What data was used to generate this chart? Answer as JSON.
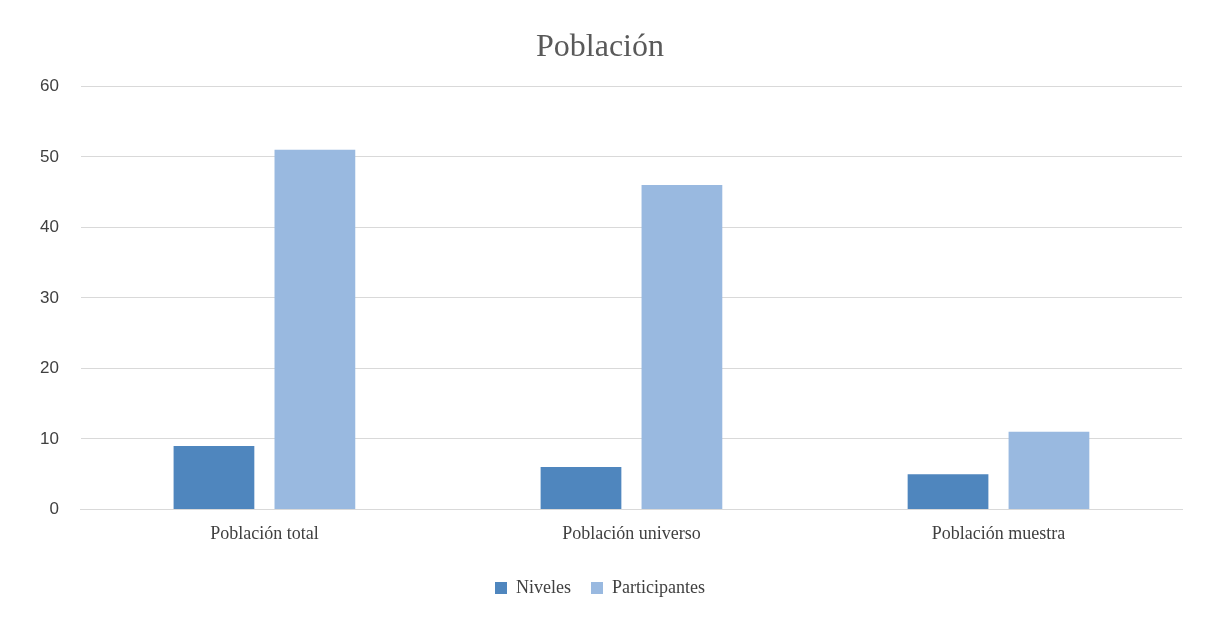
{
  "chart_data": {
    "type": "bar",
    "title": "Población",
    "categories": [
      "Población total",
      "Población universo",
      "Población muestra"
    ],
    "series": [
      {
        "name": "Niveles",
        "color": "#4f86be",
        "values": [
          9,
          6,
          5
        ]
      },
      {
        "name": "Participantes",
        "color": "#99b9e0",
        "values": [
          51,
          46,
          11
        ]
      }
    ],
    "ylim": [
      0,
      60
    ],
    "yticks": [
      0,
      10,
      20,
      30,
      40,
      50,
      60
    ],
    "grid": "y",
    "legend": "bottom"
  }
}
